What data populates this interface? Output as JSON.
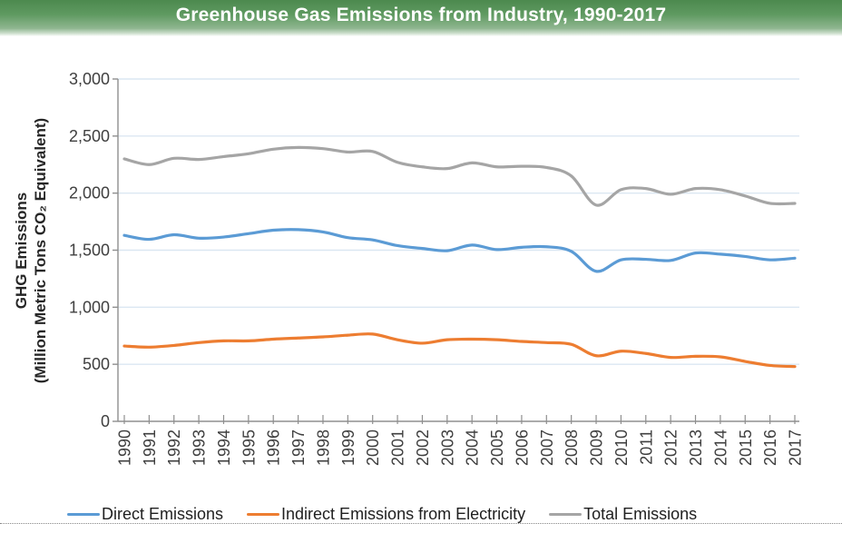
{
  "header": {
    "title": "Greenhouse Gas Emissions from Industry, 1990-2017"
  },
  "colors": {
    "title_bar_top": "#4c894e",
    "title_bar_bottom": "#9abf9b",
    "gridline": "#dbe7f2",
    "axis": "#8f8f8f",
    "tick_text": "#3f3f3f",
    "legend_text": "#1f1f1f"
  },
  "chart_data": {
    "type": "line",
    "title": "Greenhouse Gas Emissions from Industry, 1990-2017",
    "ylabel_line1": "GHG Emissions",
    "ylabel_line2": "(Million Metric Tons CO₂ Equivalent)",
    "xlabel": "",
    "ylim": [
      0,
      3000
    ],
    "ytick_step": 500,
    "ytick_labels": [
      "0",
      "500",
      "1,000",
      "1,500",
      "2,000",
      "2,500",
      "3,000"
    ],
    "grid": "horizontal",
    "smoothed": true,
    "legend_position": "bottom",
    "x": [
      "1990",
      "1991",
      "1992",
      "1993",
      "1994",
      "1995",
      "1996",
      "1997",
      "1998",
      "1999",
      "2000",
      "2001",
      "2002",
      "2003",
      "2004",
      "2005",
      "2006",
      "2007",
      "2008",
      "2009",
      "2010",
      "2011",
      "2012",
      "2013",
      "2014",
      "2015",
      "2016",
      "2017"
    ],
    "series": [
      {
        "name": "Direct Emissions",
        "color": "#5b9bd5",
        "values": [
          1630,
          1595,
          1635,
          1605,
          1615,
          1645,
          1675,
          1680,
          1660,
          1610,
          1590,
          1540,
          1515,
          1495,
          1545,
          1505,
          1525,
          1530,
          1490,
          1315,
          1415,
          1420,
          1410,
          1475,
          1465,
          1445,
          1415,
          1430
        ]
      },
      {
        "name": "Indirect Emissions from Electricity",
        "color": "#ed7d31",
        "values": [
          660,
          650,
          665,
          690,
          705,
          705,
          720,
          730,
          740,
          755,
          765,
          715,
          685,
          715,
          720,
          715,
          700,
          690,
          675,
          575,
          615,
          595,
          560,
          570,
          565,
          525,
          490,
          480
        ]
      },
      {
        "name": "Total Emissions",
        "color": "#a5a5a5",
        "values": [
          2300,
          2250,
          2305,
          2295,
          2320,
          2345,
          2385,
          2400,
          2390,
          2360,
          2365,
          2270,
          2230,
          2215,
          2265,
          2230,
          2235,
          2225,
          2150,
          1895,
          2030,
          2040,
          1990,
          2040,
          2030,
          1975,
          1910,
          1910
        ]
      }
    ]
  }
}
